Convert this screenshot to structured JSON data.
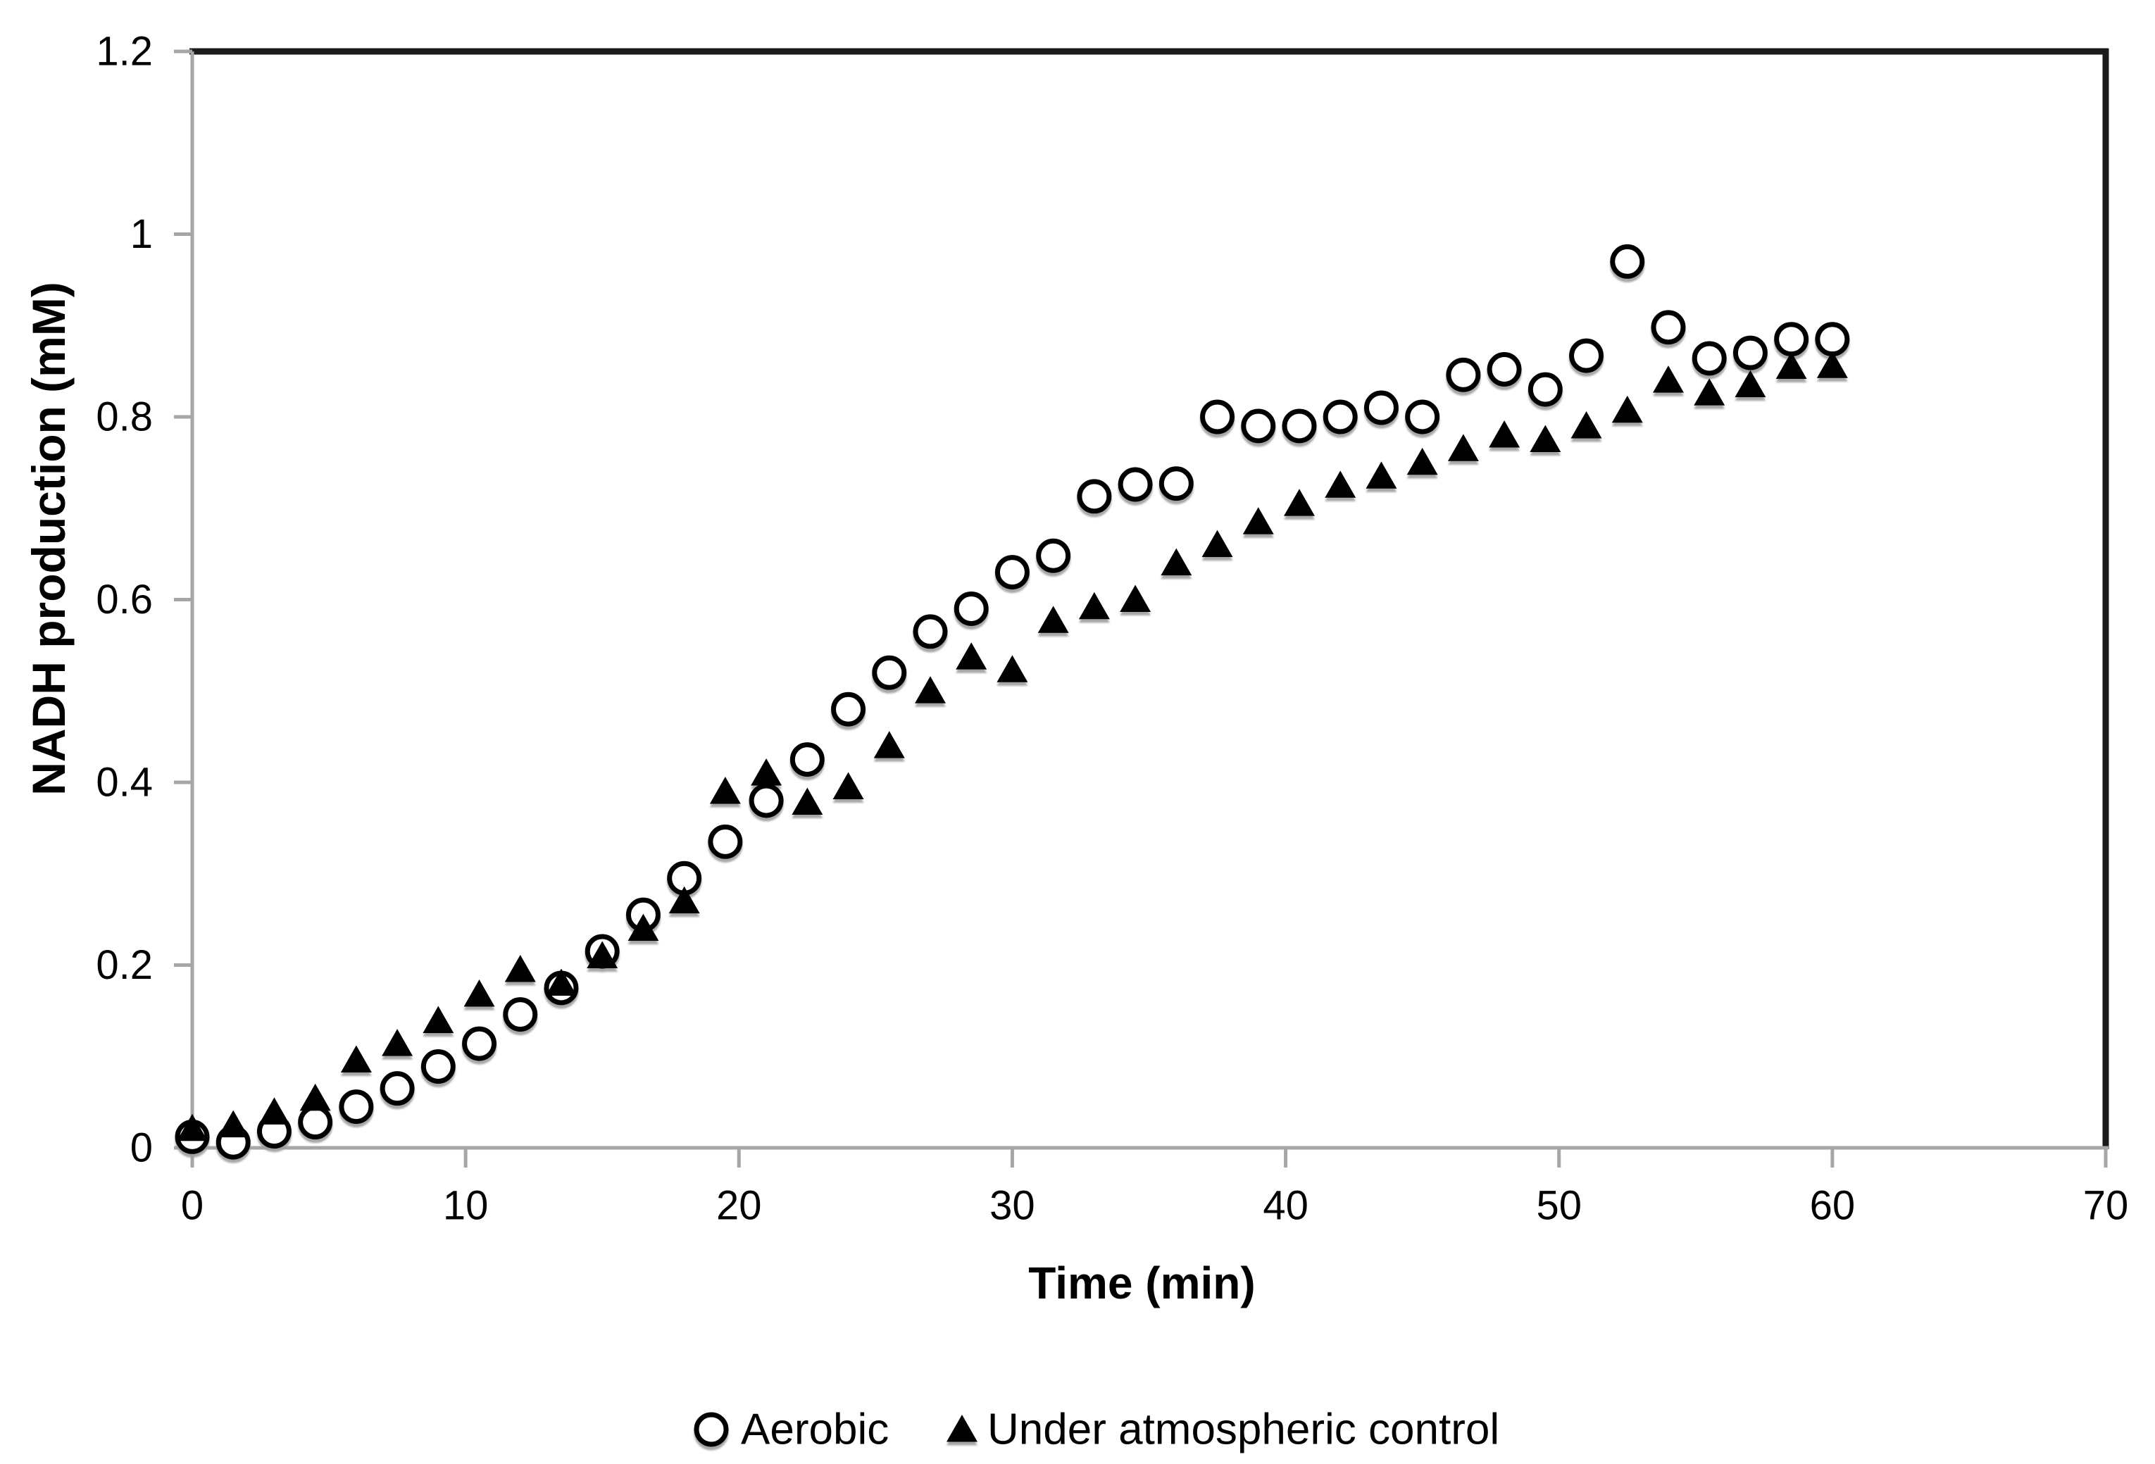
{
  "chart_data": {
    "type": "scatter",
    "title": "",
    "xlabel": "Time (min)",
    "ylabel": "NADH production (mM)",
    "xlim": [
      0,
      70
    ],
    "ylim": [
      0,
      1.2
    ],
    "grid": false,
    "legend_position": "bottom-center",
    "xticks": [
      {
        "v": 0,
        "label": "0"
      },
      {
        "v": 10,
        "label": "10"
      },
      {
        "v": 20,
        "label": "20"
      },
      {
        "v": 30,
        "label": "30"
      },
      {
        "v": 40,
        "label": "40"
      },
      {
        "v": 50,
        "label": "50"
      },
      {
        "v": 60,
        "label": "60"
      },
      {
        "v": 70,
        "label": "70"
      }
    ],
    "yticks": [
      {
        "v": 0,
        "label": "0"
      },
      {
        "v": 0.2,
        "label": "0.2"
      },
      {
        "v": 0.4,
        "label": "0.4"
      },
      {
        "v": 0.6,
        "label": "0.6"
      },
      {
        "v": 0.8,
        "label": "0.8"
      },
      {
        "v": 1,
        "label": "1"
      },
      {
        "v": 1.2,
        "label": "1.2"
      }
    ],
    "x": [
      0,
      1.5,
      3,
      4.5,
      6,
      7.5,
      9,
      10.5,
      12,
      13.5,
      15,
      16.5,
      18,
      19.5,
      21,
      22.5,
      24,
      25.5,
      27,
      28.5,
      30,
      31.5,
      33,
      34.5,
      36,
      37.5,
      39,
      40.5,
      42,
      43.5,
      45,
      46.5,
      48,
      49.5,
      51,
      52.5,
      54,
      55.5,
      57,
      58.5,
      60
    ],
    "series": [
      {
        "name": "Aerobic",
        "marker": "circle",
        "values": [
          0.012,
          0.006,
          0.018,
          0.028,
          0.045,
          0.065,
          0.089,
          0.114,
          0.146,
          0.175,
          0.215,
          0.255,
          0.295,
          0.335,
          0.38,
          0.425,
          0.48,
          0.52,
          0.565,
          0.59,
          0.63,
          0.648,
          0.713,
          0.726,
          0.727,
          0.8,
          0.79,
          0.79,
          0.8,
          0.81,
          0.8,
          0.846,
          0.852,
          0.83,
          0.867,
          0.97,
          0.898,
          0.864,
          0.87,
          0.885,
          0.885
        ]
      },
      {
        "name": "Under atmospheric control",
        "marker": "triangle",
        "values": [
          0.021,
          0.025,
          0.039,
          0.054,
          0.096,
          0.114,
          0.139,
          0.168,
          0.195,
          0.18,
          0.21,
          0.24,
          0.27,
          0.39,
          0.41,
          0.378,
          0.395,
          0.44,
          0.5,
          0.537,
          0.523,
          0.577,
          0.592,
          0.6,
          0.64,
          0.66,
          0.685,
          0.705,
          0.725,
          0.735,
          0.75,
          0.765,
          0.78,
          0.775,
          0.79,
          0.807,
          0.84,
          0.826,
          0.835,
          0.855,
          0.856
        ]
      }
    ],
    "colors": {
      "marker": "#000000",
      "circle_fill": "#ffffff",
      "axis_line": "#a6a6a6",
      "frame_border": "#1a1a1a",
      "text": "#000000",
      "background": "#ffffff",
      "marker_shadow": "#9e9e9e"
    }
  }
}
